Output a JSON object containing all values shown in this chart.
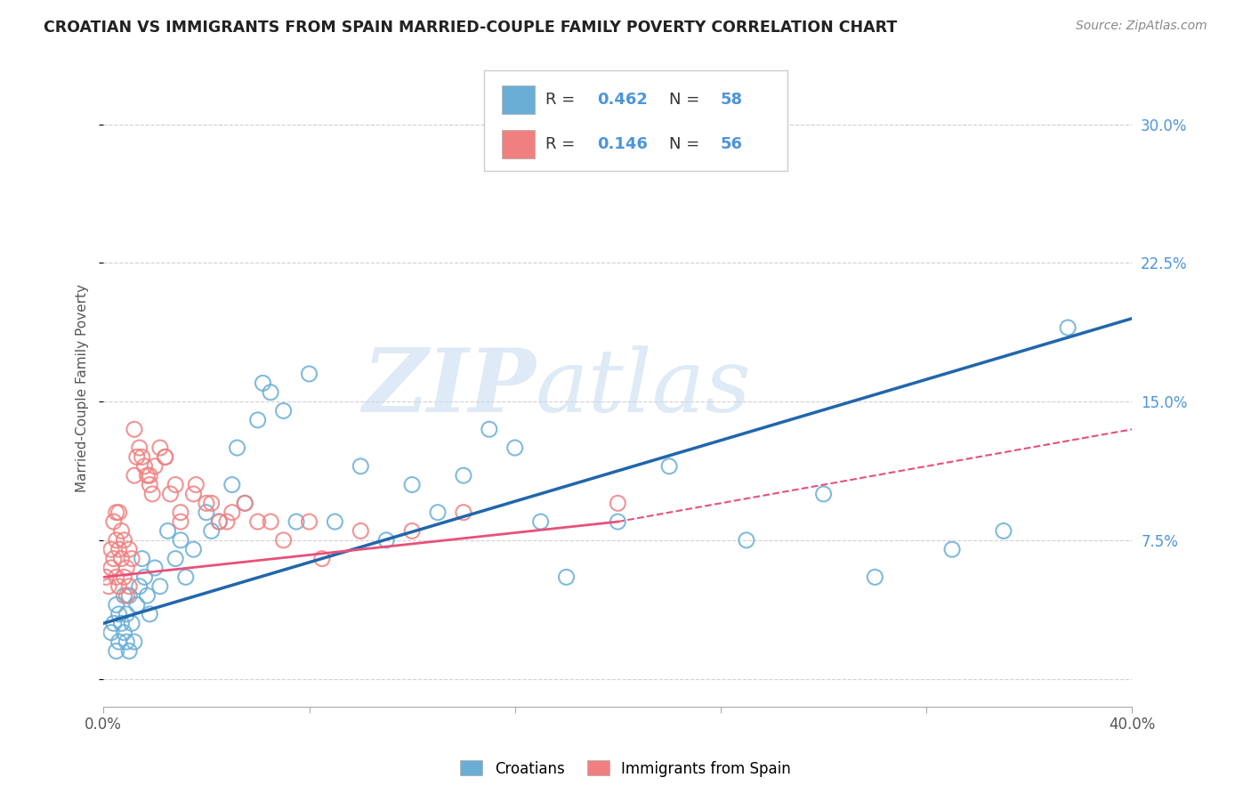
{
  "title": "CROATIAN VS IMMIGRANTS FROM SPAIN MARRIED-COUPLE FAMILY POVERTY CORRELATION CHART",
  "source": "Source: ZipAtlas.com",
  "ylabel": "Married-Couple Family Poverty",
  "xlim": [
    0.0,
    40.0
  ],
  "ylim": [
    -1.5,
    33.0
  ],
  "ytick_positions": [
    0.0,
    7.5,
    15.0,
    22.5,
    30.0
  ],
  "ytick_labels": [
    "",
    "7.5%",
    "15.0%",
    "22.5%",
    "30.0%"
  ],
  "croatian_color": "#6aaed6",
  "spain_color": "#f08080",
  "R_croatian": 0.462,
  "N_croatian": 58,
  "R_spain": 0.146,
  "N_spain": 56,
  "legend_labels": [
    "Croatians",
    "Immigrants from Spain"
  ],
  "watermark_zip": "ZIP",
  "watermark_atlas": "atlas",
  "background_color": "#ffffff",
  "grid_color": "#d0d0d0",
  "title_color": "#222222",
  "right_tick_color": "#4d94db",
  "blue_line_x0": 0.0,
  "blue_line_y0": 3.0,
  "blue_line_x1": 40.0,
  "blue_line_y1": 19.5,
  "pink_solid_x0": 0.0,
  "pink_solid_y0": 5.5,
  "pink_solid_x1": 20.0,
  "pink_solid_y1": 8.5,
  "pink_dash_x0": 20.0,
  "pink_dash_y0": 8.5,
  "pink_dash_x1": 40.0,
  "pink_dash_y1": 13.5,
  "croatian_x": [
    0.3,
    0.4,
    0.5,
    0.5,
    0.6,
    0.6,
    0.7,
    0.8,
    0.8,
    0.9,
    0.9,
    1.0,
    1.0,
    1.1,
    1.2,
    1.3,
    1.4,
    1.5,
    1.6,
    1.7,
    1.8,
    2.0,
    2.2,
    2.5,
    2.8,
    3.0,
    3.5,
    4.0,
    4.5,
    5.0,
    5.5,
    6.0,
    6.5,
    7.0,
    7.5,
    8.0,
    9.0,
    10.0,
    11.0,
    12.0,
    13.0,
    14.0,
    15.0,
    16.0,
    17.0,
    18.0,
    20.0,
    22.0,
    25.0,
    28.0,
    30.0,
    33.0,
    35.0,
    37.5,
    3.2,
    4.2,
    5.2,
    6.2
  ],
  "croatian_y": [
    2.5,
    3.0,
    1.5,
    4.0,
    2.0,
    3.5,
    3.0,
    2.5,
    4.5,
    2.0,
    3.5,
    1.5,
    4.5,
    3.0,
    2.0,
    4.0,
    5.0,
    6.5,
    5.5,
    4.5,
    3.5,
    6.0,
    5.0,
    8.0,
    6.5,
    7.5,
    7.0,
    9.0,
    8.5,
    10.5,
    9.5,
    14.0,
    15.5,
    14.5,
    8.5,
    16.5,
    8.5,
    11.5,
    7.5,
    10.5,
    9.0,
    11.0,
    13.5,
    12.5,
    8.5,
    5.5,
    8.5,
    11.5,
    7.5,
    10.0,
    5.5,
    7.0,
    8.0,
    19.0,
    5.5,
    8.0,
    12.5,
    16.0
  ],
  "spain_x": [
    0.1,
    0.2,
    0.3,
    0.3,
    0.4,
    0.4,
    0.5,
    0.5,
    0.5,
    0.6,
    0.6,
    0.7,
    0.7,
    0.8,
    0.8,
    0.9,
    0.9,
    1.0,
    1.0,
    1.1,
    1.2,
    1.3,
    1.4,
    1.5,
    1.6,
    1.7,
    1.8,
    1.9,
    2.0,
    2.2,
    2.4,
    2.6,
    2.8,
    3.0,
    3.5,
    4.0,
    4.5,
    5.0,
    6.0,
    7.0,
    8.0,
    10.0,
    12.0,
    14.0,
    20.0,
    0.6,
    1.2,
    1.8,
    2.4,
    3.0,
    3.6,
    4.2,
    4.8,
    5.5,
    6.5,
    8.5
  ],
  "spain_y": [
    5.5,
    5.0,
    6.0,
    7.0,
    6.5,
    8.5,
    5.5,
    7.5,
    9.0,
    5.0,
    7.0,
    6.5,
    8.0,
    5.5,
    7.5,
    4.5,
    6.0,
    5.0,
    7.0,
    6.5,
    11.0,
    12.0,
    12.5,
    12.0,
    11.5,
    11.0,
    10.5,
    10.0,
    11.5,
    12.5,
    12.0,
    10.0,
    10.5,
    9.0,
    10.0,
    9.5,
    8.5,
    9.0,
    8.5,
    7.5,
    8.5,
    8.0,
    8.0,
    9.0,
    9.5,
    9.0,
    13.5,
    11.0,
    12.0,
    8.5,
    10.5,
    9.5,
    8.5,
    9.5,
    8.5,
    6.5
  ]
}
